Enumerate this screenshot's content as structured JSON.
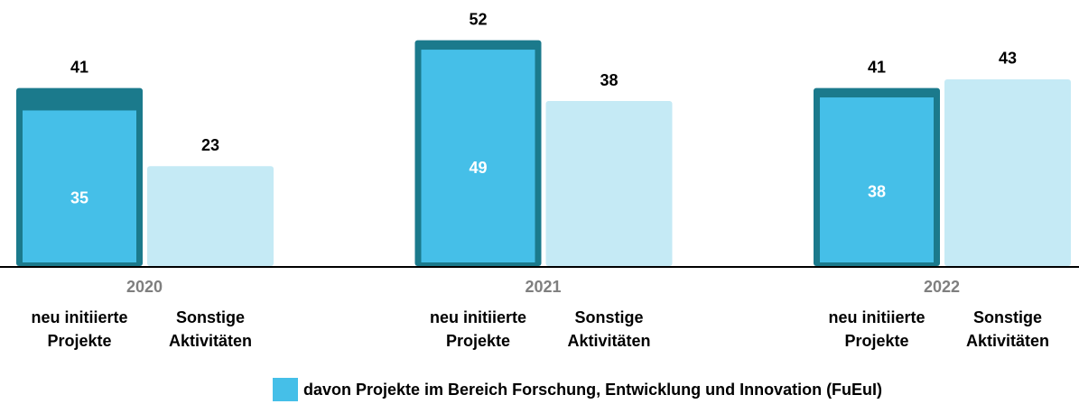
{
  "chart_data": {
    "type": "bar",
    "categories": [
      "2020",
      "2021",
      "2022"
    ],
    "series": [
      {
        "name": "neu initiierte Projekte",
        "color": "#1b7a8c",
        "values": [
          41,
          52,
          41
        ]
      },
      {
        "name": "davon Projekte im Bereich Forschung, Entwicklung und Innovation (FuEuI)",
        "color": "#45bfe8",
        "values": [
          35,
          49,
          38
        ],
        "nested_in": 0,
        "in_legend": true
      },
      {
        "name": "Sonstige Aktivitäten",
        "color": "#c5eaf5",
        "values": [
          23,
          38,
          43
        ]
      }
    ],
    "ylim": [
      0,
      54
    ]
  }
}
